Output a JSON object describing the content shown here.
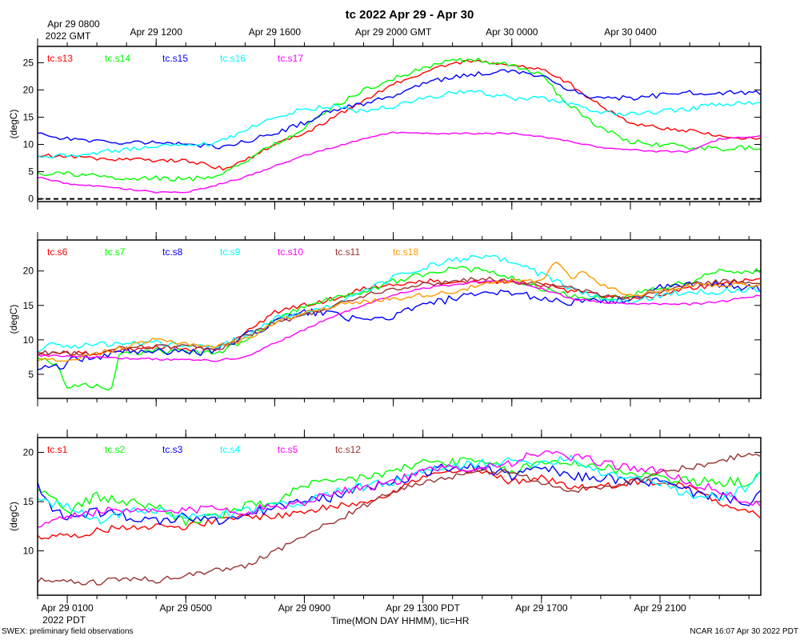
{
  "chart_data": [
    {
      "type": "line",
      "title": "tc 2022 Apr 29 - Apr 30",
      "ylabel": "(degC)",
      "xlim": [
        0,
        24.4
      ],
      "ylim": [
        -0.5,
        28
      ],
      "yticks": [
        0,
        5,
        10,
        15,
        20,
        25
      ],
      "zero_line": true,
      "top_ticks": [
        {
          "x": 0,
          "label": "Apr 29 0800",
          "label2": "2022 GMT"
        },
        {
          "x": 4,
          "label": "Apr 29 1200"
        },
        {
          "x": 8,
          "label": "Apr 29 1600"
        },
        {
          "x": 12,
          "label": "Apr 29 2000 GMT"
        },
        {
          "x": 16,
          "label": "Apr 30 0000"
        },
        {
          "x": 20,
          "label": "Apr 30 0400"
        }
      ],
      "series": [
        {
          "name": "tc.s13",
          "color": "#ff0000",
          "noise": 0.35,
          "x": [
            0,
            3,
            5,
            6.3,
            7,
            8,
            9,
            10,
            12,
            13,
            14,
            15,
            16,
            17,
            18,
            19,
            20,
            21,
            22,
            23,
            24.4
          ],
          "y": [
            8,
            7.2,
            7,
            5.5,
            7,
            10,
            12,
            15,
            21,
            23,
            25,
            25.3,
            24.5,
            24,
            21,
            17,
            14,
            13,
            12.5,
            11.5,
            11
          ]
        },
        {
          "name": "tc.s14",
          "color": "#00ff00",
          "noise": 0.45,
          "x": [
            0,
            1,
            2,
            3,
            4,
            5,
            6,
            7,
            8,
            9,
            10,
            11,
            12,
            13,
            14,
            15,
            16,
            17,
            17.5,
            18,
            19,
            20,
            21,
            22,
            23,
            24.4
          ],
          "y": [
            4.7,
            4.6,
            4.2,
            3.5,
            3.8,
            3.6,
            4.2,
            7,
            10,
            13,
            17,
            20,
            22,
            24,
            25.5,
            25.4,
            24.5,
            23,
            19.5,
            17,
            13,
            10.5,
            10,
            9.5,
            9.2,
            9.5
          ]
        },
        {
          "name": "tc.s15",
          "color": "#0000ff",
          "noise": 0.45,
          "x": [
            0,
            2,
            4,
            6,
            7,
            8,
            9,
            10,
            11,
            12,
            13,
            14,
            15,
            16,
            17,
            18,
            18.5,
            19,
            20,
            21,
            22,
            23,
            24.4
          ],
          "y": [
            11.8,
            10.5,
            10.5,
            9.5,
            10.5,
            12,
            14,
            16.5,
            17.5,
            19,
            21,
            22.5,
            23,
            23.5,
            22.5,
            20,
            19,
            18.5,
            18.5,
            19,
            19.5,
            19.5,
            19.5
          ]
        },
        {
          "name": "tc.s16",
          "color": "#00ffff",
          "noise": 0.45,
          "x": [
            0,
            2,
            4,
            6,
            7,
            8,
            9,
            10,
            11,
            12,
            13,
            14,
            15,
            16,
            17,
            18,
            19,
            19.5,
            20,
            21,
            22,
            23,
            24.4
          ],
          "y": [
            7.5,
            8.5,
            9.5,
            10,
            12.5,
            15,
            16.5,
            17,
            16,
            17,
            18.5,
            19.5,
            19.5,
            18.5,
            18.5,
            17.5,
            16,
            15.5,
            15.5,
            16,
            16.5,
            17.5,
            17.5
          ]
        },
        {
          "name": "tc.s17",
          "color": "#ff00ff",
          "noise": 0.15,
          "x": [
            0,
            1,
            2,
            3,
            4,
            5,
            6,
            7,
            8,
            9,
            10,
            11,
            12,
            13,
            14,
            15,
            16,
            17,
            18,
            19,
            20,
            21,
            22,
            23,
            24.4
          ],
          "y": [
            4,
            2.8,
            2.3,
            1.8,
            1.2,
            1.2,
            2.5,
            4,
            6,
            8,
            9.5,
            11,
            12.2,
            12,
            12,
            12,
            12,
            11.5,
            10.5,
            9.5,
            9,
            8.7,
            8.7,
            11,
            11.5
          ]
        }
      ]
    },
    {
      "type": "line",
      "ylabel": "(degC)",
      "xlim": [
        0,
        24.4
      ],
      "ylim": [
        1.5,
        24.5
      ],
      "yticks": [
        5,
        10,
        15,
        20
      ],
      "series": [
        {
          "name": "tc.s6",
          "color": "#ff0000",
          "noise": 0.35,
          "x": [
            0,
            2,
            4,
            6,
            7,
            8,
            9,
            10,
            11,
            12,
            13,
            14,
            15,
            16,
            17,
            18,
            19,
            20,
            21,
            22,
            23,
            24.4
          ],
          "y": [
            8,
            8,
            9,
            8.5,
            11,
            14,
            15,
            16,
            17.5,
            18,
            18.5,
            18.5,
            18.5,
            18.5,
            18,
            17,
            16.5,
            16,
            16.5,
            17.5,
            18,
            19
          ]
        },
        {
          "name": "tc.s7",
          "color": "#00ff00",
          "noise": 0.4,
          "x": [
            0,
            0.7,
            1,
            2,
            2.5,
            2.7,
            3,
            4,
            6,
            7,
            8,
            9,
            10,
            11,
            12,
            13,
            14,
            15,
            16,
            17,
            18,
            19,
            20,
            21,
            22,
            23,
            24.4
          ],
          "y": [
            7.5,
            6,
            3,
            3.5,
            2.8,
            7.5,
            8,
            8.5,
            8,
            10,
            13,
            15,
            16,
            17,
            18.5,
            19.5,
            20.5,
            20,
            19,
            17.5,
            16.5,
            16,
            16.5,
            17.5,
            18.5,
            20,
            20
          ]
        },
        {
          "name": "tc.s8",
          "color": "#0000ff",
          "noise": 0.55,
          "x": [
            0,
            0.8,
            1,
            2,
            3,
            4,
            5,
            6,
            7,
            8,
            9,
            10,
            11,
            12,
            13,
            14,
            15,
            16,
            17,
            18,
            19,
            20,
            21,
            22,
            23,
            24.4
          ],
          "y": [
            6,
            6,
            7,
            7.5,
            8.5,
            8.5,
            8,
            8.5,
            10.5,
            12.5,
            14,
            14,
            12.5,
            13.5,
            15,
            16,
            16.5,
            17,
            16,
            15.5,
            15.5,
            16,
            17.5,
            18,
            18,
            17.5
          ]
        },
        {
          "name": "tc.s9",
          "color": "#00ffff",
          "noise": 0.45,
          "x": [
            0,
            0.5,
            1,
            2,
            4,
            6,
            7,
            8,
            9,
            10,
            11,
            12,
            13,
            14,
            15,
            16,
            17,
            18,
            19,
            20,
            21,
            22,
            23,
            24.4
          ],
          "y": [
            8,
            9.5,
            9,
            9.5,
            9.5,
            9,
            10.5,
            13,
            14,
            15,
            17,
            19,
            20.5,
            21.5,
            22,
            21.5,
            19.5,
            17.5,
            16,
            15.5,
            16.5,
            17,
            17,
            17.5
          ]
        },
        {
          "name": "tc.s10",
          "color": "#ff00ff",
          "noise": 0.15,
          "x": [
            0,
            2,
            4,
            6,
            7,
            8,
            9,
            10,
            11,
            12,
            13,
            14,
            15,
            16,
            17,
            18,
            19,
            20,
            21,
            22,
            23,
            24.4
          ],
          "y": [
            7.8,
            7.5,
            7.2,
            7,
            7.5,
            9.5,
            11.5,
            13.5,
            15,
            16.5,
            17.5,
            18,
            18.5,
            18.5,
            17.5,
            16,
            15.5,
            15.2,
            15.2,
            15.2,
            15.5,
            16.5
          ]
        },
        {
          "name": "tc.s11",
          "color": "#993333",
          "noise": 0.35,
          "x": [
            0,
            1,
            2,
            3,
            4,
            5,
            6,
            7,
            8,
            9,
            10,
            11,
            12,
            13,
            14,
            15,
            16,
            17,
            18,
            19,
            20,
            21,
            22,
            23,
            24.4
          ],
          "y": [
            8.2,
            8,
            8,
            9,
            9,
            9,
            8.5,
            10.5,
            12.5,
            13.5,
            15,
            16.5,
            17.5,
            18,
            18.5,
            19,
            18.5,
            18,
            17.5,
            16.5,
            16,
            17,
            18,
            18.5,
            18.5
          ]
        },
        {
          "name": "tc.s18",
          "color": "#ff9900",
          "noise": 0.35,
          "x": [
            0,
            1,
            2,
            3,
            4,
            5,
            6,
            7,
            8,
            9,
            10,
            11,
            12,
            13,
            14,
            15,
            16,
            17,
            17.5,
            18,
            18.5,
            19,
            20,
            21,
            22,
            23,
            24.4
          ],
          "y": [
            7,
            7,
            8,
            9,
            10,
            9.5,
            9,
            10,
            12.5,
            14,
            15,
            15.5,
            16,
            16.5,
            17,
            18,
            18.5,
            18.5,
            21.5,
            19,
            20,
            18,
            16.5,
            17,
            18,
            18,
            18
          ]
        }
      ]
    },
    {
      "type": "line",
      "ylabel": "(degC)",
      "xlim": [
        0,
        24.4
      ],
      "ylim": [
        5.5,
        21.5
      ],
      "yticks": [
        10,
        15,
        20
      ],
      "bottom_ticks": [
        {
          "x": 1,
          "label": "Apr 29 0100",
          "label2": "2022 PDT"
        },
        {
          "x": 5,
          "label": "Apr 29 0500"
        },
        {
          "x": 9,
          "label": "Apr 29 0900"
        },
        {
          "x": 13,
          "label": "Apr 29 1300 PDT"
        },
        {
          "x": 17,
          "label": "Apr 29 1700"
        },
        {
          "x": 21,
          "label": "Apr 29 2100"
        }
      ],
      "xlabel": "Time(MON DAY HHMM), tic=HR",
      "series": [
        {
          "name": "tc.s1",
          "color": "#ff0000",
          "noise": 0.35,
          "x": [
            0,
            1,
            2,
            3,
            4,
            5,
            6,
            7,
            8,
            9,
            10,
            11,
            12,
            13,
            14,
            15,
            16,
            17,
            18,
            19,
            20,
            21,
            22,
            23,
            24,
            24.4
          ],
          "y": [
            11.5,
            11.5,
            12,
            12.5,
            12.5,
            12.5,
            13,
            13.5,
            13.5,
            14,
            14.5,
            15,
            16,
            17.5,
            18,
            18,
            17,
            17.5,
            16.5,
            16.5,
            17,
            17,
            16.5,
            15,
            14,
            13.5
          ]
        },
        {
          "name": "tc.s2",
          "color": "#00ff00",
          "noise": 0.5,
          "x": [
            0,
            1,
            2,
            3,
            4,
            5,
            6,
            7,
            8,
            9,
            10,
            11,
            12,
            13,
            14,
            15,
            16,
            17,
            18,
            19,
            20,
            21,
            22,
            23,
            24,
            24.4
          ],
          "y": [
            16.5,
            14,
            15.5,
            15,
            14.5,
            13,
            13.5,
            14.5,
            15,
            16.5,
            17,
            17.5,
            18,
            19,
            19,
            19,
            18,
            19,
            19,
            18.5,
            18,
            17.5,
            17,
            17,
            17,
            18
          ]
        },
        {
          "name": "tc.s3",
          "color": "#0000ff",
          "noise": 0.5,
          "x": [
            0,
            0.5,
            1,
            2,
            3,
            4,
            5,
            6,
            7,
            8,
            9,
            10,
            11,
            12,
            13,
            14,
            15,
            16,
            17,
            18,
            19,
            20,
            21,
            22,
            23,
            24,
            24.4
          ],
          "y": [
            16.5,
            14,
            13.5,
            14,
            13.5,
            13,
            13.5,
            13,
            13.5,
            14.5,
            15,
            15.5,
            16.5,
            17,
            18,
            18.5,
            18.5,
            17.5,
            18.5,
            17.5,
            17.5,
            17,
            17,
            16,
            15.5,
            15,
            16
          ]
        },
        {
          "name": "tc.s4",
          "color": "#00ffff",
          "noise": 0.45,
          "x": [
            0,
            1,
            2,
            3,
            4,
            5,
            6,
            7,
            8,
            9,
            10,
            11,
            12,
            13,
            14,
            15,
            16,
            17,
            18,
            19,
            20,
            21,
            22,
            23,
            24,
            24.4
          ],
          "y": [
            15,
            14.5,
            13,
            14,
            14,
            13.5,
            13.5,
            14,
            14.5,
            15,
            16,
            16.5,
            17,
            18,
            18.5,
            19,
            19,
            19,
            19.5,
            18,
            17.5,
            17,
            15.5,
            15.5,
            16.5,
            18
          ]
        },
        {
          "name": "tc.s5",
          "color": "#ff00ff",
          "noise": 0.45,
          "x": [
            0,
            1,
            2,
            3,
            4,
            5,
            6,
            7,
            8,
            9,
            10,
            11,
            12,
            13,
            14,
            15,
            16,
            17,
            18,
            19,
            20,
            21,
            22,
            23,
            24,
            24.4
          ],
          "y": [
            12.5,
            13.5,
            14,
            14,
            14,
            14,
            14.5,
            14,
            14.5,
            15,
            16,
            16.5,
            17,
            18,
            18.5,
            18.5,
            19,
            20,
            19.5,
            19,
            18.5,
            18,
            17,
            16,
            15,
            14.5
          ]
        },
        {
          "name": "tc.s12",
          "color": "#993333",
          "noise": 0.3,
          "x": [
            0,
            1,
            2,
            3,
            4,
            5,
            6,
            7,
            8,
            9,
            10,
            11,
            12,
            13,
            14,
            15,
            16,
            17,
            18,
            19,
            20,
            21,
            22,
            23,
            24,
            24.4
          ],
          "y": [
            7,
            6.8,
            6.8,
            7.2,
            7,
            7.5,
            8,
            8.5,
            10,
            11.5,
            13,
            14.5,
            16,
            17,
            17.5,
            18,
            18,
            17,
            16,
            16.5,
            17,
            18,
            18.5,
            19,
            20,
            19.8
          ]
        }
      ]
    }
  ],
  "footer": {
    "left": "SWEX: preliminary field observations",
    "right": "NCAR 16:07 Apr 30 2022 PDT"
  }
}
